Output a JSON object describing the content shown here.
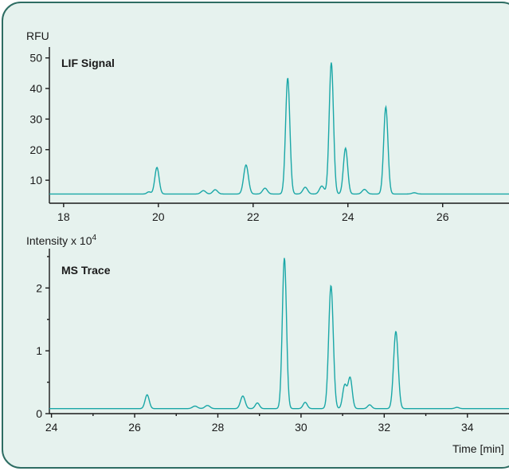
{
  "colors": {
    "panel_bg": "#e6f2ee",
    "panel_border": "#2e6d63",
    "trace": "#1aa7a7"
  },
  "chart_data": [
    {
      "type": "line",
      "title": "LIF Signal",
      "ylabel": "RFU",
      "xlabel": "",
      "xlim": [
        17.7,
        27.4
      ],
      "ylim": [
        3,
        52
      ],
      "xticks": [
        18,
        20,
        22,
        24,
        26
      ],
      "yticks": [
        10,
        20,
        30,
        40,
        50
      ],
      "baseline": 5.5,
      "peaks": [
        {
          "x": 19.8,
          "height": 0.7,
          "width": 0.04
        },
        {
          "x": 19.97,
          "height": 8.7,
          "width": 0.045
        },
        {
          "x": 20.95,
          "height": 1.1,
          "width": 0.05
        },
        {
          "x": 21.2,
          "height": 1.4,
          "width": 0.05
        },
        {
          "x": 21.85,
          "height": 9.5,
          "width": 0.05
        },
        {
          "x": 22.25,
          "height": 1.9,
          "width": 0.05
        },
        {
          "x": 22.73,
          "height": 38,
          "width": 0.045
        },
        {
          "x": 23.1,
          "height": 2.2,
          "width": 0.05
        },
        {
          "x": 23.45,
          "height": 2.6,
          "width": 0.05
        },
        {
          "x": 23.65,
          "height": 43,
          "width": 0.045
        },
        {
          "x": 23.95,
          "height": 15,
          "width": 0.045
        },
        {
          "x": 24.35,
          "height": 1.5,
          "width": 0.05
        },
        {
          "x": 24.8,
          "height": 28.5,
          "width": 0.045
        },
        {
          "x": 25.4,
          "height": 0.4,
          "width": 0.05
        }
      ]
    },
    {
      "type": "line",
      "title": "MS Trace",
      "ylabel": "Intensity x 10",
      "ylabel_sup": "4",
      "xlabel": "Time [min]",
      "xlim": [
        23.95,
        35.0
      ],
      "ylim": [
        0,
        2.55
      ],
      "xticks": [
        24,
        26,
        28,
        30,
        32,
        34
      ],
      "yticks": [
        0,
        1,
        2
      ],
      "baseline": 0.08,
      "peaks": [
        {
          "x": 26.3,
          "height": 0.22,
          "width": 0.05
        },
        {
          "x": 27.45,
          "height": 0.04,
          "width": 0.06
        },
        {
          "x": 27.75,
          "height": 0.05,
          "width": 0.06
        },
        {
          "x": 28.6,
          "height": 0.2,
          "width": 0.055
        },
        {
          "x": 28.95,
          "height": 0.09,
          "width": 0.05
        },
        {
          "x": 29.6,
          "height": 2.4,
          "width": 0.05
        },
        {
          "x": 30.1,
          "height": 0.1,
          "width": 0.05
        },
        {
          "x": 30.72,
          "height": 1.96,
          "width": 0.055
        },
        {
          "x": 31.05,
          "height": 0.37,
          "width": 0.05
        },
        {
          "x": 31.18,
          "height": 0.49,
          "width": 0.05
        },
        {
          "x": 31.65,
          "height": 0.06,
          "width": 0.05
        },
        {
          "x": 32.28,
          "height": 1.23,
          "width": 0.055
        },
        {
          "x": 33.75,
          "height": 0.02,
          "width": 0.05
        }
      ]
    }
  ]
}
